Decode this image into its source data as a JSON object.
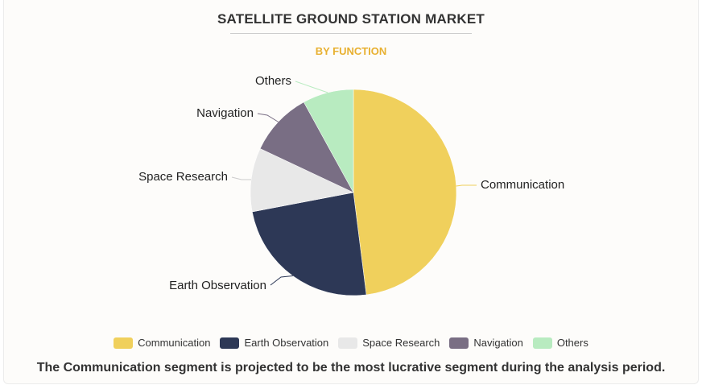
{
  "chart_data": {
    "type": "pie",
    "title": "SATELLITE GROUND STATION MARKET",
    "subtitle": "BY FUNCTION",
    "categories": [
      "Communication",
      "Earth Observation",
      "Space Research",
      "Navigation",
      "Others"
    ],
    "values": [
      48,
      24,
      10,
      10,
      8
    ],
    "colors": [
      "#f0d05c",
      "#2d3856",
      "#e8e8e8",
      "#796e84",
      "#b8ebc0"
    ],
    "legend_position": "bottom",
    "footnote": "The Communication segment is projected to be the most lucrative segment during the analysis period."
  }
}
